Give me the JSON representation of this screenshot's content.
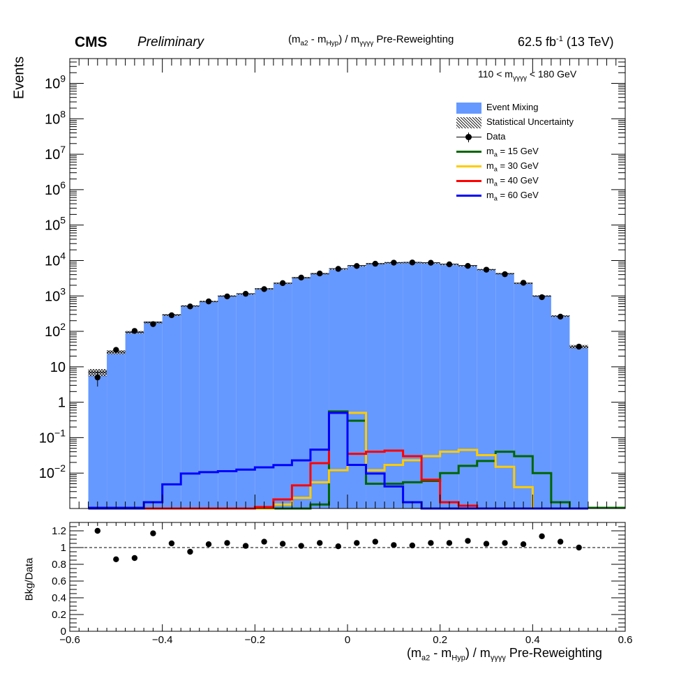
{
  "header": {
    "experiment": "CMS",
    "status": "Preliminary",
    "title_main": "(m",
    "title_sub_a2": "a2",
    "title_mid": " - m",
    "title_sub_hyp": "Hyp",
    "title_close": ") / m",
    "title_sub_gggg": "γγγγ",
    "title_rest": " Pre-Reweighting",
    "lumi_value": "62.5 fb",
    "lumi_exp": "-1",
    "lumi_energy": " (13 TeV)"
  },
  "selection": {
    "pre": "110 < m",
    "sub": "γγγγ",
    "post": " < 180 GeV"
  },
  "legend": {
    "items": [
      {
        "label": "Event Mixing",
        "color": "#6699ff",
        "kind": "fill"
      },
      {
        "label": "Statistical Uncertainty",
        "color": "#000000",
        "kind": "hatch"
      },
      {
        "label": "Data",
        "color": "#000000",
        "kind": "marker"
      },
      {
        "label": "m",
        "sub": "a",
        "rest": " = 15 GeV",
        "color": "#006600",
        "kind": "line"
      },
      {
        "label": "m",
        "sub": "a",
        "rest": " = 30 GeV",
        "color": "#ffcc00",
        "kind": "line"
      },
      {
        "label": "m",
        "sub": "a",
        "rest": " = 40 GeV",
        "color": "#ff0000",
        "kind": "line"
      },
      {
        "label": "m",
        "sub": "a",
        "rest": " = 60 GeV",
        "color": "#0000ff",
        "kind": "line"
      }
    ]
  },
  "chart_data": [
    {
      "type": "bar",
      "ylabel": "Events",
      "ylog": true,
      "ylim": [
        0.001,
        5000000000
      ],
      "xlim": [
        -0.6,
        0.6
      ],
      "bin_edges": [
        -0.56,
        -0.52,
        -0.48,
        -0.44,
        -0.4,
        -0.36,
        -0.32,
        -0.28,
        -0.24,
        -0.2,
        -0.16,
        -0.12,
        -0.08,
        -0.04,
        0.0,
        0.04,
        0.08,
        0.12,
        0.16,
        0.2,
        0.24,
        0.28,
        0.32,
        0.36,
        0.4,
        0.44,
        0.48,
        0.52
      ],
      "y_tick_labels": [
        "10^-2",
        "10^-1",
        "1",
        "10",
        "10^2",
        "10^3",
        "10^4",
        "10^5",
        "10^6",
        "10^7",
        "10^8",
        "10^9"
      ],
      "series": [
        {
          "name": "Event Mixing",
          "kind": "stack",
          "color": "#6699ff",
          "values": [
            7,
            26,
            95,
            180,
            290,
            520,
            700,
            1000,
            1150,
            1600,
            2300,
            3300,
            4300,
            5900,
            7200,
            8200,
            8800,
            8900,
            8700,
            7900,
            7200,
            5600,
            4300,
            2300,
            1000,
            270,
            37
          ]
        },
        {
          "name": "Data",
          "kind": "points",
          "color": "#000000",
          "values": [
            5,
            30,
            103,
            160,
            285,
            505,
            700,
            970,
            1150,
            1560,
            2300,
            3300,
            4300,
            5800,
            7000,
            8100,
            8700,
            8800,
            8650,
            7800,
            7050,
            5500,
            4100,
            2350,
            920,
            260,
            37
          ]
        },
        {
          "name": "m_a = 15 GeV",
          "kind": "step",
          "color": "#006600",
          "values": [
            0,
            0,
            0,
            0,
            0,
            0,
            0,
            0,
            0,
            0,
            0,
            0,
            0.0013,
            0.55,
            0.3,
            0.005,
            0.005,
            0.0055,
            0.006,
            0.01,
            0.016,
            0.022,
            0.04,
            0.03,
            0.01,
            0.0015,
            0
          ]
        },
        {
          "name": "m_a = 30 GeV",
          "kind": "step",
          "color": "#ffcc00",
          "values": [
            0,
            0,
            0,
            0,
            0,
            0,
            0,
            0,
            0,
            0,
            0.0013,
            0.002,
            0.0055,
            0.012,
            0.5,
            0.012,
            0.017,
            0.023,
            0.03,
            0.04,
            0.045,
            0.032,
            0.015,
            0.004,
            0,
            0,
            0
          ]
        },
        {
          "name": "m_a = 40 GeV",
          "kind": "step",
          "color": "#ff0000",
          "values": [
            0,
            0,
            0,
            0,
            0,
            0,
            0,
            0,
            0,
            0.0011,
            0.0018,
            0.0045,
            0.019,
            0.5,
            0.035,
            0.04,
            0.043,
            0.03,
            0.0065,
            0.0015,
            0.0012,
            0,
            0,
            0,
            0,
            0,
            0
          ]
        },
        {
          "name": "m_a = 60 GeV",
          "kind": "step",
          "color": "#0000ff",
          "values": [
            0,
            0,
            0,
            0.0015,
            0.0048,
            0.0097,
            0.0106,
            0.0113,
            0.0125,
            0.0145,
            0.0168,
            0.0228,
            0.0459,
            0.5,
            0.017,
            0.0097,
            0.0042,
            0.0015,
            0,
            0,
            0,
            0,
            0,
            0,
            0,
            0,
            0
          ]
        }
      ]
    },
    {
      "type": "scatter",
      "xlabel_pre": "(m",
      "xlabel_sub_a2": "a2",
      "xlabel_mid": " - m",
      "xlabel_sub_hyp": "Hyp",
      "xlabel_close": ") / m",
      "xlabel_sub_gggg": "γγγγ",
      "xlabel_rest": " Pre-Reweighting",
      "ylabel": "Bkg/Data",
      "xlim": [
        -0.6,
        0.6
      ],
      "ylim": [
        0,
        1.3
      ],
      "x_tick_labels": [
        "−0.6",
        "−0.4",
        "−0.2",
        "0",
        "0.2",
        "0.4",
        "0.6"
      ],
      "y_tick_labels": [
        "0",
        "0.2",
        "0.4",
        "0.6",
        "0.8",
        "1",
        "1.2"
      ],
      "reference_line": 1,
      "x": [
        -0.54,
        -0.5,
        -0.46,
        -0.42,
        -0.38,
        -0.34,
        -0.3,
        -0.26,
        -0.22,
        -0.18,
        -0.14,
        -0.1,
        -0.06,
        -0.02,
        0.02,
        0.06,
        0.1,
        0.14,
        0.18,
        0.22,
        0.26,
        0.3,
        0.34,
        0.38,
        0.42,
        0.46,
        0.5
      ],
      "values": [
        1.2,
        0.86,
        0.875,
        1.17,
        1.05,
        0.95,
        1.04,
        1.055,
        1.02,
        1.07,
        1.045,
        1.02,
        1.055,
        1.015,
        1.055,
        1.07,
        1.03,
        1.025,
        1.055,
        1.055,
        1.08,
        1.045,
        1.055,
        1.04,
        1.135,
        1.07,
        1.0
      ]
    }
  ]
}
